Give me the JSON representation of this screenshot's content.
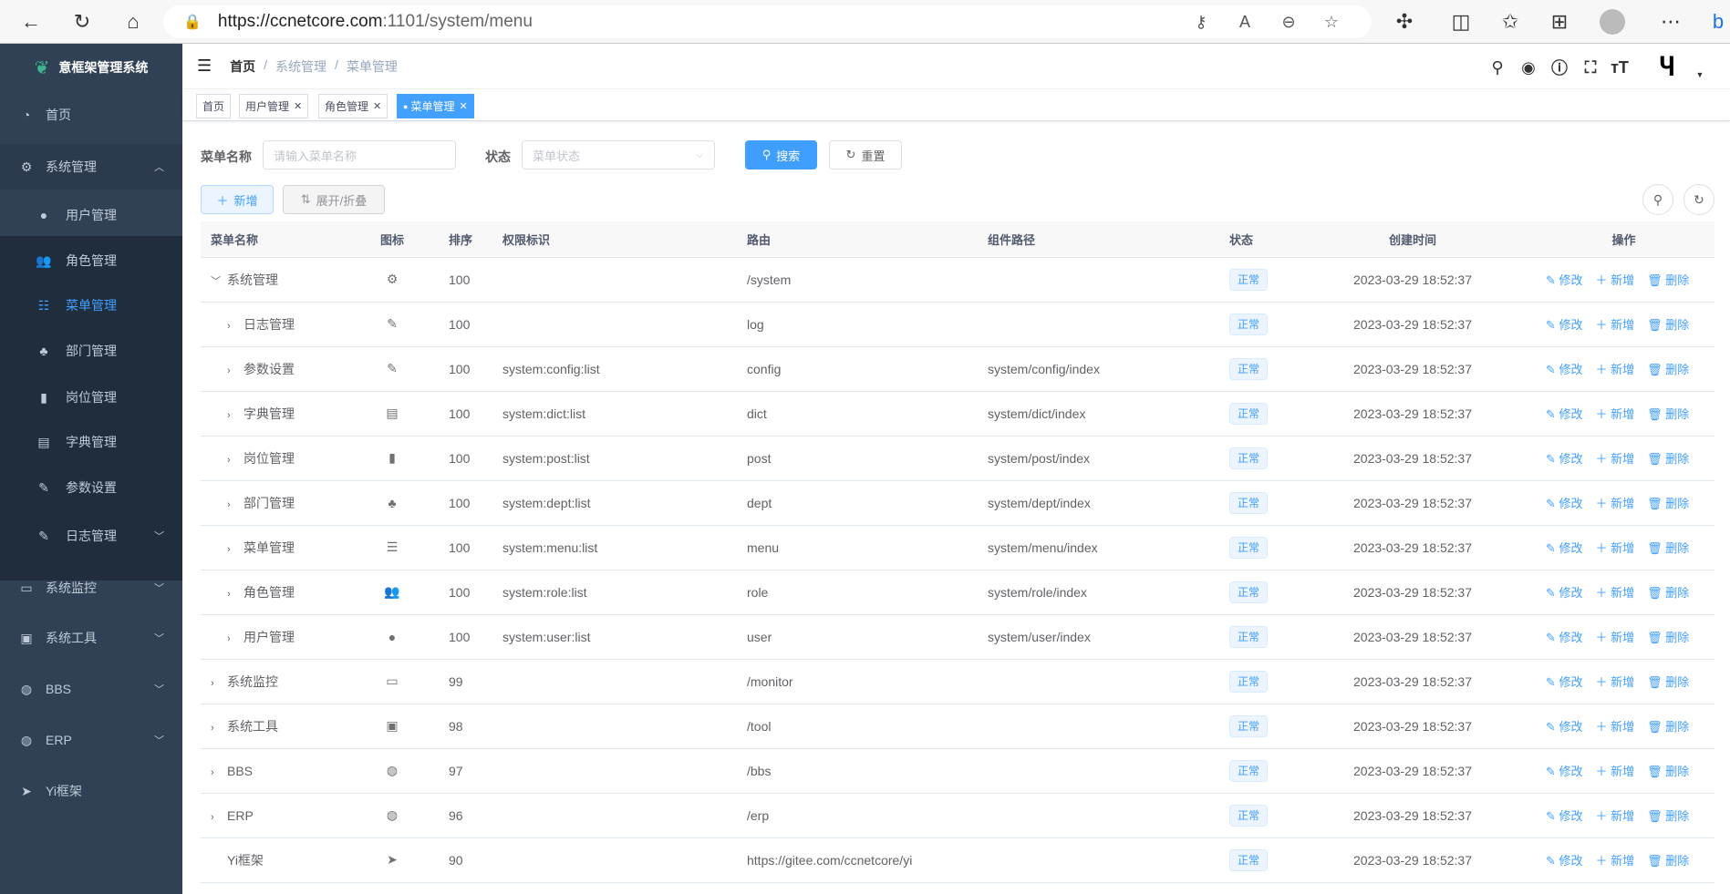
{
  "browser": {
    "url_host": "https://ccnetcore.com",
    "url_path": ":1101/system/menu"
  },
  "app": {
    "title": "意框架管理系统",
    "accent": "#409eff",
    "sidebar_bg": "#304156"
  },
  "sidebar": {
    "items": [
      {
        "label": "首页",
        "icon": "dashboard-icon"
      },
      {
        "label": "系统管理",
        "icon": "gear-icon",
        "expanded": true
      },
      {
        "label": "用户管理",
        "icon": "user-icon"
      },
      {
        "label": "角色管理",
        "icon": "peoples-icon"
      },
      {
        "label": "菜单管理",
        "icon": "tree-table-icon",
        "active": true
      },
      {
        "label": "部门管理",
        "icon": "tree-icon"
      },
      {
        "label": "岗位管理",
        "icon": "post-icon"
      },
      {
        "label": "字典管理",
        "icon": "dict-icon"
      },
      {
        "label": "参数设置",
        "icon": "edit-icon"
      },
      {
        "label": "日志管理",
        "icon": "log-icon"
      },
      {
        "label": "系统监控",
        "icon": "monitor-icon"
      },
      {
        "label": "系统工具",
        "icon": "tool-icon"
      },
      {
        "label": "BBS",
        "icon": "globe-icon"
      },
      {
        "label": "ERP",
        "icon": "globe-icon"
      },
      {
        "label": "Yi框架",
        "icon": "send-icon"
      }
    ]
  },
  "breadcrumb": [
    "首页",
    "系统管理",
    "菜单管理"
  ],
  "tabs": [
    {
      "label": "首页"
    },
    {
      "label": "用户管理"
    },
    {
      "label": "角色管理"
    },
    {
      "label": "菜单管理",
      "active": true
    }
  ],
  "search": {
    "name_label": "菜单名称",
    "name_placeholder": "请输入菜单名称",
    "status_label": "状态",
    "status_placeholder": "菜单状态",
    "search_btn": "搜索",
    "reset_btn": "重置"
  },
  "toolbar": {
    "add_btn": "新增",
    "toggle_btn": "展开/折叠"
  },
  "table": {
    "columns": [
      "菜单名称",
      "图标",
      "排序",
      "权限标识",
      "路由",
      "组件路径",
      "状态",
      "创建时间",
      "操作"
    ],
    "ops": [
      "修改",
      "新增",
      "删除"
    ],
    "rows": [
      {
        "name": "系统管理",
        "level": 0,
        "chev": "v",
        "icon": "⚙",
        "sort": "100",
        "perm": "",
        "route": "/system",
        "comp": "",
        "status": "正常",
        "time": "2023-03-29 18:52:37"
      },
      {
        "name": "日志管理",
        "level": 1,
        "chev": ">",
        "icon": "✎",
        "sort": "100",
        "perm": "",
        "route": "log",
        "comp": "",
        "status": "正常",
        "time": "2023-03-29 18:52:37"
      },
      {
        "name": "参数设置",
        "level": 1,
        "chev": ">",
        "icon": "✎",
        "sort": "100",
        "perm": "system:config:list",
        "route": "config",
        "comp": "system/config/index",
        "status": "正常",
        "time": "2023-03-29 18:52:37"
      },
      {
        "name": "字典管理",
        "level": 1,
        "chev": ">",
        "icon": "▤",
        "sort": "100",
        "perm": "system:dict:list",
        "route": "dict",
        "comp": "system/dict/index",
        "status": "正常",
        "time": "2023-03-29 18:52:37"
      },
      {
        "name": "岗位管理",
        "level": 1,
        "chev": ">",
        "icon": "▮",
        "sort": "100",
        "perm": "system:post:list",
        "route": "post",
        "comp": "system/post/index",
        "status": "正常",
        "time": "2023-03-29 18:52:37"
      },
      {
        "name": "部门管理",
        "level": 1,
        "chev": ">",
        "icon": "♣",
        "sort": "100",
        "perm": "system:dept:list",
        "route": "dept",
        "comp": "system/dept/index",
        "status": "正常",
        "time": "2023-03-29 18:52:37"
      },
      {
        "name": "菜单管理",
        "level": 1,
        "chev": ">",
        "icon": "☰",
        "sort": "100",
        "perm": "system:menu:list",
        "route": "menu",
        "comp": "system/menu/index",
        "status": "正常",
        "time": "2023-03-29 18:52:37"
      },
      {
        "name": "角色管理",
        "level": 1,
        "chev": ">",
        "icon": "👥",
        "sort": "100",
        "perm": "system:role:list",
        "route": "role",
        "comp": "system/role/index",
        "status": "正常",
        "time": "2023-03-29 18:52:37"
      },
      {
        "name": "用户管理",
        "level": 1,
        "chev": ">",
        "icon": "●",
        "sort": "100",
        "perm": "system:user:list",
        "route": "user",
        "comp": "system/user/index",
        "status": "正常",
        "time": "2023-03-29 18:52:37"
      },
      {
        "name": "系统监控",
        "level": 0,
        "chev": ">",
        "icon": "▭",
        "sort": "99",
        "perm": "",
        "route": "/monitor",
        "comp": "",
        "status": "正常",
        "time": "2023-03-29 18:52:37"
      },
      {
        "name": "系统工具",
        "level": 0,
        "chev": ">",
        "icon": "▣",
        "sort": "98",
        "perm": "",
        "route": "/tool",
        "comp": "",
        "status": "正常",
        "time": "2023-03-29 18:52:37"
      },
      {
        "name": "BBS",
        "level": 0,
        "chev": ">",
        "icon": "◍",
        "sort": "97",
        "perm": "",
        "route": "/bbs",
        "comp": "",
        "status": "正常",
        "time": "2023-03-29 18:52:37"
      },
      {
        "name": "ERP",
        "level": 0,
        "chev": ">",
        "icon": "◍",
        "sort": "96",
        "perm": "",
        "route": "/erp",
        "comp": "",
        "status": "正常",
        "time": "2023-03-29 18:52:37"
      },
      {
        "name": "Yi框架",
        "level": 0,
        "chev": "",
        "icon": "➤",
        "sort": "90",
        "perm": "",
        "route": "https://gitee.com/ccnetcore/yi",
        "comp": "",
        "status": "正常",
        "time": "2023-03-29 18:52:37"
      }
    ]
  }
}
